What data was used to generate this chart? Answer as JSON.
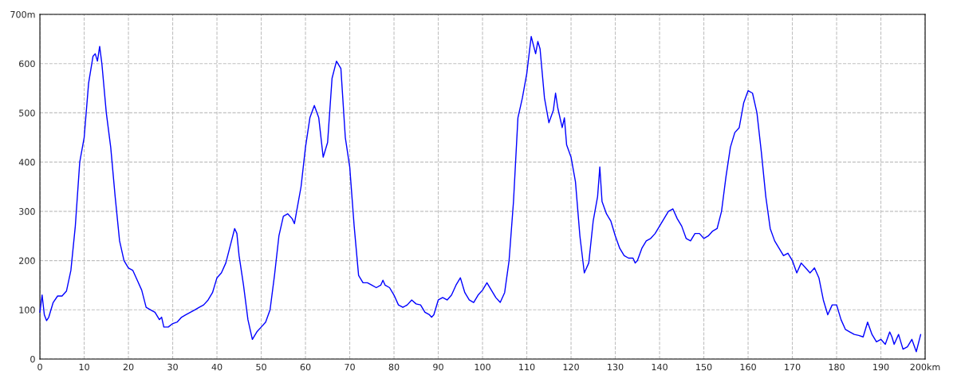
{
  "chart_data": {
    "type": "line",
    "x": [
      0,
      0.5,
      1,
      1.5,
      2,
      3,
      4,
      5,
      6,
      7,
      8,
      9,
      10,
      11,
      12,
      12.5,
      13,
      13.5,
      14,
      15,
      16,
      17,
      18,
      19,
      20,
      21,
      22,
      23,
      24,
      25,
      26,
      27,
      27.5,
      28,
      29,
      30,
      31,
      32,
      33,
      34,
      35,
      36,
      37,
      38,
      39,
      40,
      41,
      42,
      43,
      44,
      44.5,
      45,
      46,
      47,
      48,
      49,
      50,
      51,
      52,
      53,
      54,
      55,
      56,
      57,
      57.5,
      58,
      59,
      60,
      61,
      62,
      63,
      64,
      65,
      66,
      67,
      68,
      69,
      70,
      71,
      72,
      73,
      74,
      75,
      76,
      77,
      77.5,
      78,
      79,
      80,
      81,
      82,
      83,
      84,
      85,
      86,
      87,
      88,
      88.5,
      89,
      90,
      91,
      92,
      93,
      94,
      95,
      96,
      97,
      98,
      99,
      100,
      101,
      102,
      103,
      104,
      105,
      106,
      107,
      108,
      109,
      110,
      111,
      112,
      112.5,
      113,
      114,
      115,
      116,
      116.5,
      117,
      118,
      118.5,
      119,
      120,
      121,
      122,
      123,
      124,
      125,
      126,
      126.5,
      127,
      128,
      129,
      130,
      131,
      132,
      133,
      134,
      134.5,
      135,
      136,
      137,
      138,
      139,
      140,
      141,
      142,
      143,
      144,
      145,
      146,
      147,
      148,
      149,
      150,
      151,
      152,
      153,
      154,
      155,
      156,
      157,
      158,
      159,
      160,
      161,
      162,
      163,
      164,
      165,
      166,
      167,
      168,
      169,
      170,
      171,
      172,
      173,
      174,
      175,
      176,
      177,
      178,
      179,
      180,
      180.5,
      181,
      182,
      183,
      184,
      185,
      186,
      187,
      188,
      189,
      190,
      191,
      192,
      192.5,
      193,
      194,
      195,
      196,
      197,
      198,
      199
    ],
    "series": [
      {
        "color": "#0000ff",
        "values": [
          95,
          130,
          90,
          78,
          85,
          115,
          128,
          128,
          138,
          180,
          270,
          400,
          450,
          560,
          615,
          620,
          605,
          635,
          600,
          500,
          430,
          330,
          240,
          200,
          185,
          180,
          160,
          140,
          105,
          100,
          95,
          80,
          85,
          65,
          65,
          72,
          75,
          85,
          90,
          95,
          100,
          105,
          110,
          120,
          135,
          165,
          175,
          195,
          230,
          265,
          255,
          210,
          150,
          80,
          40,
          55,
          65,
          75,
          100,
          170,
          250,
          290,
          295,
          285,
          275,
          300,
          350,
          430,
          490,
          515,
          490,
          410,
          440,
          570,
          605,
          590,
          450,
          390,
          270,
          170,
          155,
          155,
          150,
          145,
          150,
          160,
          150,
          145,
          130,
          110,
          105,
          110,
          120,
          112,
          110,
          95,
          90,
          85,
          90,
          120,
          125,
          120,
          130,
          150,
          165,
          135,
          120,
          115,
          130,
          140,
          155,
          140,
          125,
          115,
          135,
          200,
          320,
          490,
          530,
          580,
          655,
          620,
          645,
          630,
          530,
          480,
          505,
          540,
          510,
          470,
          490,
          435,
          410,
          360,
          250,
          175,
          195,
          280,
          330,
          390,
          320,
          295,
          280,
          250,
          225,
          210,
          205,
          205,
          195,
          200,
          225,
          240,
          245,
          255,
          270,
          285,
          300,
          305,
          285,
          270,
          245,
          240,
          255,
          255,
          245,
          250,
          260,
          265,
          300,
          370,
          430,
          460,
          470,
          520,
          545,
          540,
          500,
          420,
          330,
          265,
          240,
          225,
          210,
          215,
          200,
          175,
          195,
          185,
          175,
          185,
          165,
          120,
          90,
          110,
          110,
          95,
          80,
          60,
          55,
          50,
          48,
          45,
          75,
          50,
          35,
          40,
          30,
          55,
          45,
          30,
          50,
          20,
          25,
          40,
          15,
          50
        ]
      }
    ],
    "xlim": [
      0,
      200
    ],
    "ylim": [
      0,
      700
    ],
    "xticks": [
      0,
      10,
      20,
      30,
      40,
      50,
      60,
      70,
      80,
      90,
      100,
      110,
      120,
      130,
      140,
      150,
      160,
      170,
      180,
      190,
      {
        "value": 200,
        "label": "200km"
      }
    ],
    "yticks": [
      0,
      100,
      200,
      300,
      400,
      500,
      600,
      {
        "value": 700,
        "label": "700m"
      }
    ],
    "grid": true,
    "line_style": "solid",
    "marker": "none"
  }
}
